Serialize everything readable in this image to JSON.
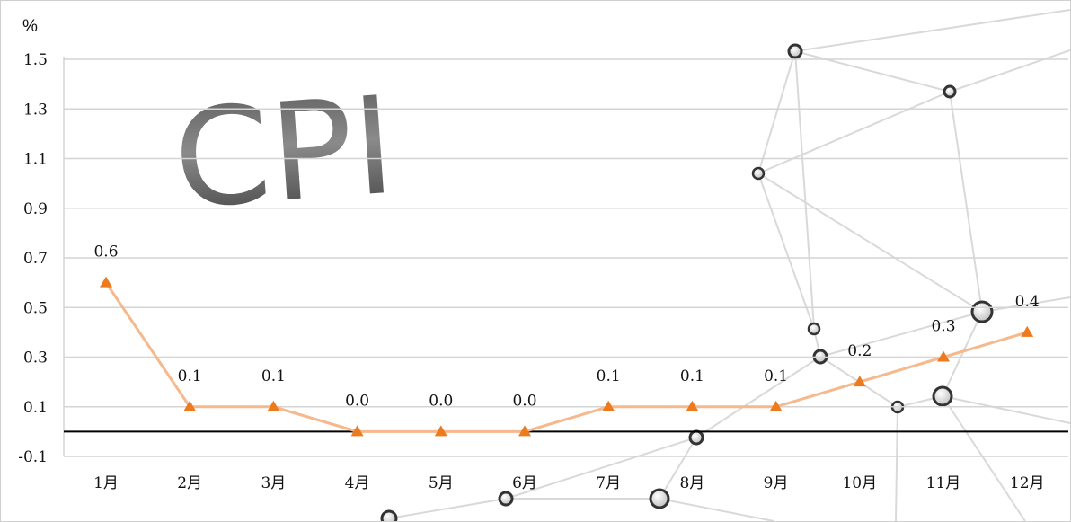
{
  "chart_data": {
    "type": "line",
    "title": "CPI",
    "unit_label": "%",
    "categories": [
      "1月",
      "2月",
      "3月",
      "4月",
      "5月",
      "6月",
      "7月",
      "8月",
      "9月",
      "10月",
      "11月",
      "12月"
    ],
    "series": [
      {
        "values": [
          0.6,
          0.1,
          0.1,
          0.0,
          0.0,
          0.0,
          0.1,
          0.1,
          0.1,
          0.2,
          0.3,
          0.4
        ]
      }
    ],
    "data_labels": [
      "0.6",
      "0.1",
      "0.1",
      "0.0",
      "0.0",
      "0.0",
      "0.1",
      "0.1",
      "0.1",
      "0.2",
      "0.3",
      "0.4"
    ],
    "yticks": [
      "1.5",
      "1.3",
      "1.1",
      "0.9",
      "0.7",
      "0.5",
      "0.3",
      "0.1",
      "-0.1"
    ],
    "ylim": [
      -0.1,
      1.5
    ],
    "grid": true,
    "legend": "none",
    "colors": {
      "line": "#f6b88d",
      "marker": "#ee7a1e",
      "grid": "#d4d4d4",
      "baseline": "#000000"
    }
  }
}
